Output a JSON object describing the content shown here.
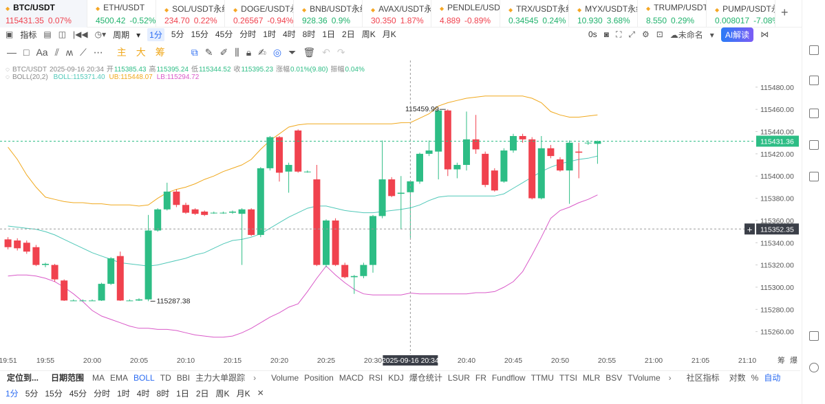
{
  "tickers": [
    {
      "name": "BTC/USDT",
      "price": "115431.35",
      "change": "0.07%",
      "color": "#f0424e"
    },
    {
      "name": "ETH/USDT",
      "price": "4500.42",
      "change": "-0.52%",
      "color": "#20b26c"
    },
    {
      "name": "SOL/USDT永续",
      "price": "234.70",
      "change": "0.22%",
      "color": "#f0424e"
    },
    {
      "name": "DOGE/USDT永续",
      "price": "0.26567",
      "change": "-0.94%",
      "color": "#f0424e"
    },
    {
      "name": "BNB/USDT永续",
      "price": "928.36",
      "change": "0.9%",
      "color": "#20b26c"
    },
    {
      "name": "AVAX/USDT永续",
      "price": "30.350",
      "change": "1.87%",
      "color": "#f0424e"
    },
    {
      "name": "PENDLE/USDT",
      "price": "4.889",
      "change": "-0.89%",
      "color": "#f0424e"
    },
    {
      "name": "TRX/USDT永续",
      "price": "0.34545",
      "change": "0.24%",
      "color": "#20b26c"
    },
    {
      "name": "MYX/USDT永续",
      "price": "10.930",
      "change": "3.68%",
      "color": "#20b26c"
    },
    {
      "name": "TRUMP/USDT",
      "price": "8.550",
      "change": "0.29%",
      "color": "#20b26c"
    },
    {
      "name": "PUMP/USDT永续",
      "price": "0.008017",
      "change": "-7.08%",
      "color": "#20b26c"
    }
  ],
  "toolbar": {
    "indicator": "指标",
    "period": "周期",
    "intervals": [
      "1分",
      "5分",
      "15分",
      "45分",
      "分时",
      "1时",
      "4时",
      "8时",
      "1日",
      "2日",
      "周K",
      "月K"
    ],
    "selected": "1分",
    "timer": "0s",
    "layout": "未命名",
    "ai": "AI解读"
  },
  "drawing_tools": [
    "主",
    "大",
    "筹"
  ],
  "chart_data": {
    "type": "candlestick",
    "symbol": "BTC/USDT",
    "names": {
      "open": "开",
      "high": "高",
      "low": "低",
      "close": "收",
      "change": "涨幅",
      "amplitude": "振幅"
    },
    "change": "0.01%(9.80)",
    "amplitude": "0.04%",
    "indicator": "BOLL(20,2)",
    "up_color": "#2dbd85",
    "down_color": "#f0424e",
    "categories": [
      "19:51",
      null,
      null,
      null,
      "19:55",
      null,
      null,
      null,
      null,
      "20:00",
      null,
      null,
      null,
      null,
      "20:05",
      null,
      null,
      null,
      null,
      "20:10",
      null,
      null,
      null,
      null,
      "20:15",
      null,
      null,
      null,
      null,
      "20:20",
      null,
      null,
      null,
      null,
      "20:25",
      null,
      null,
      null,
      null,
      "20:30",
      null,
      null,
      null,
      null,
      null,
      null,
      null,
      null,
      null,
      "20:40",
      null,
      null,
      null,
      null,
      "20:45",
      null,
      null,
      null,
      null,
      "20:50",
      null,
      null,
      null,
      null,
      "20:55",
      null,
      null,
      null,
      null,
      "21:00",
      null,
      null,
      null,
      null,
      "21:05",
      null,
      null,
      null,
      null,
      "21:10"
    ],
    "open": [
      115343,
      115342,
      115340,
      115336,
      115320,
      115320,
      115306,
      115288,
      115288,
      115288,
      115288,
      115303,
      115328,
      115288,
      115288,
      115289,
      115351,
      115370,
      115386,
      115374,
      115370,
      115368,
      115367,
      115367,
      115367,
      115366,
      115370,
      115347,
      115407,
      115435,
      115404,
      115441,
      115404,
      115397,
      115320,
      115360,
      115320,
      115309,
      115310,
      115320,
      115364,
      115397,
      115384,
      115385.43,
      115395,
      115420,
      115422,
      115459,
      115406,
      115410,
      115433,
      115420,
      115405,
      115395,
      115423,
      115436,
      115433,
      115380,
      115425,
      115415,
      115405,
      115422,
      115430,
      115429,
      null,
      null,
      null,
      null,
      null,
      null,
      null,
      null,
      null,
      null,
      null,
      null,
      null,
      null,
      null,
      null
    ],
    "high": [
      115345,
      115344,
      115342,
      115338,
      115322,
      115321,
      115307,
      115289,
      115289,
      115289,
      115304,
      115327,
      115332,
      115289,
      115290,
      115365,
      115371,
      115394,
      115388,
      115376,
      115371,
      115369,
      115368,
      115368,
      115369,
      115371,
      115371,
      115408,
      115436,
      115436,
      115412,
      115442,
      115405,
      115410,
      115361,
      115362,
      115322,
      115311,
      115322,
      115365,
      115432,
      115399,
      115400,
      115395.24,
      115421,
      115432,
      115459.5,
      115459.99,
      115412,
      115458,
      115455,
      115422,
      115407,
      115425,
      115438,
      115438,
      115435,
      115436,
      115428,
      115417,
      115432,
      115430,
      115432,
      115432,
      null,
      null,
      null,
      null,
      null,
      null,
      null,
      null,
      null,
      null,
      null,
      null,
      null,
      null,
      null,
      null
    ],
    "low": [
      115334,
      115333,
      115330,
      115319,
      115318,
      115305,
      115287.6,
      115287.6,
      115287.6,
      115287.6,
      115287.6,
      115302,
      115287.6,
      115287.6,
      115287.6,
      115287.38,
      115350,
      115369,
      115372,
      115366,
      115365,
      115364,
      115366,
      115366,
      115366,
      115320,
      115346,
      115345,
      115405,
      115395,
      115385,
      115403,
      115403,
      115319,
      115318,
      115319,
      115308,
      115294,
      115308,
      115313,
      115362,
      115381,
      115352,
      115344.52,
      115393,
      115418,
      115397,
      115400,
      115398,
      115405,
      115420,
      115390,
      115386,
      115394,
      115421,
      115430,
      115379,
      115379,
      115416,
      115404,
      115375,
      115398,
      115428,
      115411,
      null,
      null,
      null,
      null,
      null,
      null,
      null,
      null,
      null,
      null,
      null,
      null,
      null,
      null,
      null,
      null
    ],
    "close": [
      115336,
      115335,
      115332,
      115320,
      115321,
      115307,
      115288,
      115288,
      115288,
      115288,
      115303,
      115326,
      115288,
      115288,
      115289,
      115351,
      115370,
      115386,
      115374,
      115367,
      115366,
      115365,
      115367,
      115367,
      115368,
      115370,
      115347,
      115407,
      115435,
      115403,
      115410,
      115404,
      115404,
      115320,
      115360,
      115320,
      115309,
      115310,
      115320,
      115364,
      115397,
      115382,
      115385,
      115395.23,
      115420,
      115423,
      115459,
      115406,
      115410,
      115433,
      115424,
      115392,
      115387,
      115423,
      115436,
      115433,
      115380,
      115425,
      115418,
      115405,
      115430,
      115421,
      115430,
      115431.36,
      null,
      null,
      null,
      null,
      null,
      null,
      null,
      null,
      null,
      null,
      null,
      null,
      null,
      null,
      null,
      null
    ],
    "series": [
      {
        "name": "BOLL:115371.40",
        "color": "#4fc8b8",
        "values": [
          115355,
          115354,
          115353,
          115352,
          115350,
          115347,
          115343,
          115339,
          115335,
          115331,
          115328,
          115325,
          115322,
          115321,
          115320,
          115319,
          115320,
          115322,
          115324,
          115326,
          115329,
          115331,
          115335,
          115339,
          115342,
          115343,
          115345,
          115348,
          115353,
          115358,
          115363,
          115367,
          115371,
          115373,
          115373,
          115371,
          115369,
          115368,
          115367,
          115367,
          115368,
          115369,
          115370,
          115371.4,
          115374,
          115378,
          115381,
          115382,
          115382,
          115382,
          115382,
          115382,
          115382,
          115384,
          115389,
          115394,
          115399,
          115404,
          115408,
          115411,
          115413,
          115415,
          115416,
          115418,
          null,
          null,
          null,
          null,
          null,
          null,
          null,
          null,
          null,
          null,
          null,
          null,
          null,
          null,
          null,
          null
        ]
      },
      {
        "name": "UB:115448.07",
        "color": "#f0a81c",
        "values": [
          115426,
          115415,
          115401,
          115390,
          115381,
          115379,
          115377,
          115376,
          115376,
          115375,
          115375,
          115374,
          115374,
          115374,
          115373,
          115374,
          115380,
          115385,
          115388,
          115390,
          115393,
          115397,
          115400,
          115404,
          115407,
          115410,
          115415,
          115424,
          115432,
          115438,
          115444,
          115446,
          115447,
          115447,
          115447,
          115447,
          115447,
          115447,
          115447,
          115447,
          115447,
          115447,
          115448,
          115448.07,
          115452,
          115456,
          115463,
          115466,
          115468,
          115470,
          115471,
          115472,
          115472,
          115472,
          115472,
          115472,
          115470,
          115466,
          115458,
          115455,
          115453,
          115453,
          115454,
          115455,
          null,
          null,
          null,
          null,
          null,
          null,
          null,
          null,
          null,
          null,
          null,
          null,
          null,
          null,
          null,
          null
        ]
      },
      {
        "name": "LB:115294.72",
        "color": "#d958c8",
        "values": [
          115310,
          115311,
          115311,
          115310,
          115308,
          115305,
          115300,
          115294,
          115287,
          115279,
          115274,
          115271,
          115268,
          115265,
          115263,
          115263,
          115262,
          115262,
          115261,
          115259,
          115257,
          115256,
          115255,
          115255,
          115256,
          115259,
          115263,
          115268,
          115273,
          115277,
          115282,
          115285,
          115296,
          115308,
          115319,
          115311,
          115304,
          115298,
          115294,
          115293,
          115293,
          115293,
          115293,
          115294.72,
          115294,
          115294,
          115294,
          115294,
          115294,
          115294,
          115295,
          115295,
          115296,
          115300,
          115305,
          115314,
          115329,
          115345,
          115362,
          115369,
          115372,
          115376,
          115379,
          115383,
          null,
          null,
          null,
          null,
          null,
          null,
          null,
          null,
          null,
          null,
          null,
          null,
          null,
          null,
          null,
          null
        ]
      }
    ],
    "ylim": [
      115240,
      115504
    ],
    "yticks": [
      {
        "value": 115260,
        "label": "115260.00"
      },
      {
        "value": 115280,
        "label": "115280.00"
      },
      {
        "value": 115300,
        "label": "115300.00"
      },
      {
        "value": 115320,
        "label": "115320.00"
      },
      {
        "value": 115340,
        "label": "115340.00"
      },
      {
        "value": 115360,
        "label": "115360.00"
      },
      {
        "value": 115380,
        "label": "115380.00"
      },
      {
        "value": 115400,
        "label": "115400.00"
      },
      {
        "value": 115420,
        "label": "115420.00"
      },
      {
        "value": 115440,
        "label": "115440.00"
      },
      {
        "value": 115460,
        "label": "115460.00"
      },
      {
        "value": 115480,
        "label": "115480.00"
      }
    ],
    "grid": false,
    "crosshair": {
      "price": 115352.35,
      "time": "2025-09-16 20:34"
    },
    "corner_labels": [
      "筹",
      "爆"
    ]
  },
  "bottom_bar": {
    "locate": "定位到...",
    "range": "日期范围",
    "main_indicators": [
      "MA",
      "EMA",
      "BOLL",
      "TD",
      "BBI",
      "主力大单跟踪"
    ],
    "active": "BOLL",
    "sub_indicators": [
      "Volume",
      "Position",
      "MACD",
      "RSI",
      "KDJ",
      "爆仓统计",
      "LSUR",
      "FR",
      "Fundflow",
      "TTMU",
      "TTSI",
      "MLR",
      "BSV",
      "TVolume"
    ],
    "community": "社区指标",
    "log": "对数",
    "percent": "%",
    "auto": "自动"
  },
  "bottom_intervals": [
    "1分",
    "5分",
    "15分",
    "45分",
    "分时",
    "1时",
    "4时",
    "8时",
    "1日",
    "2日",
    "周K",
    "月K"
  ]
}
